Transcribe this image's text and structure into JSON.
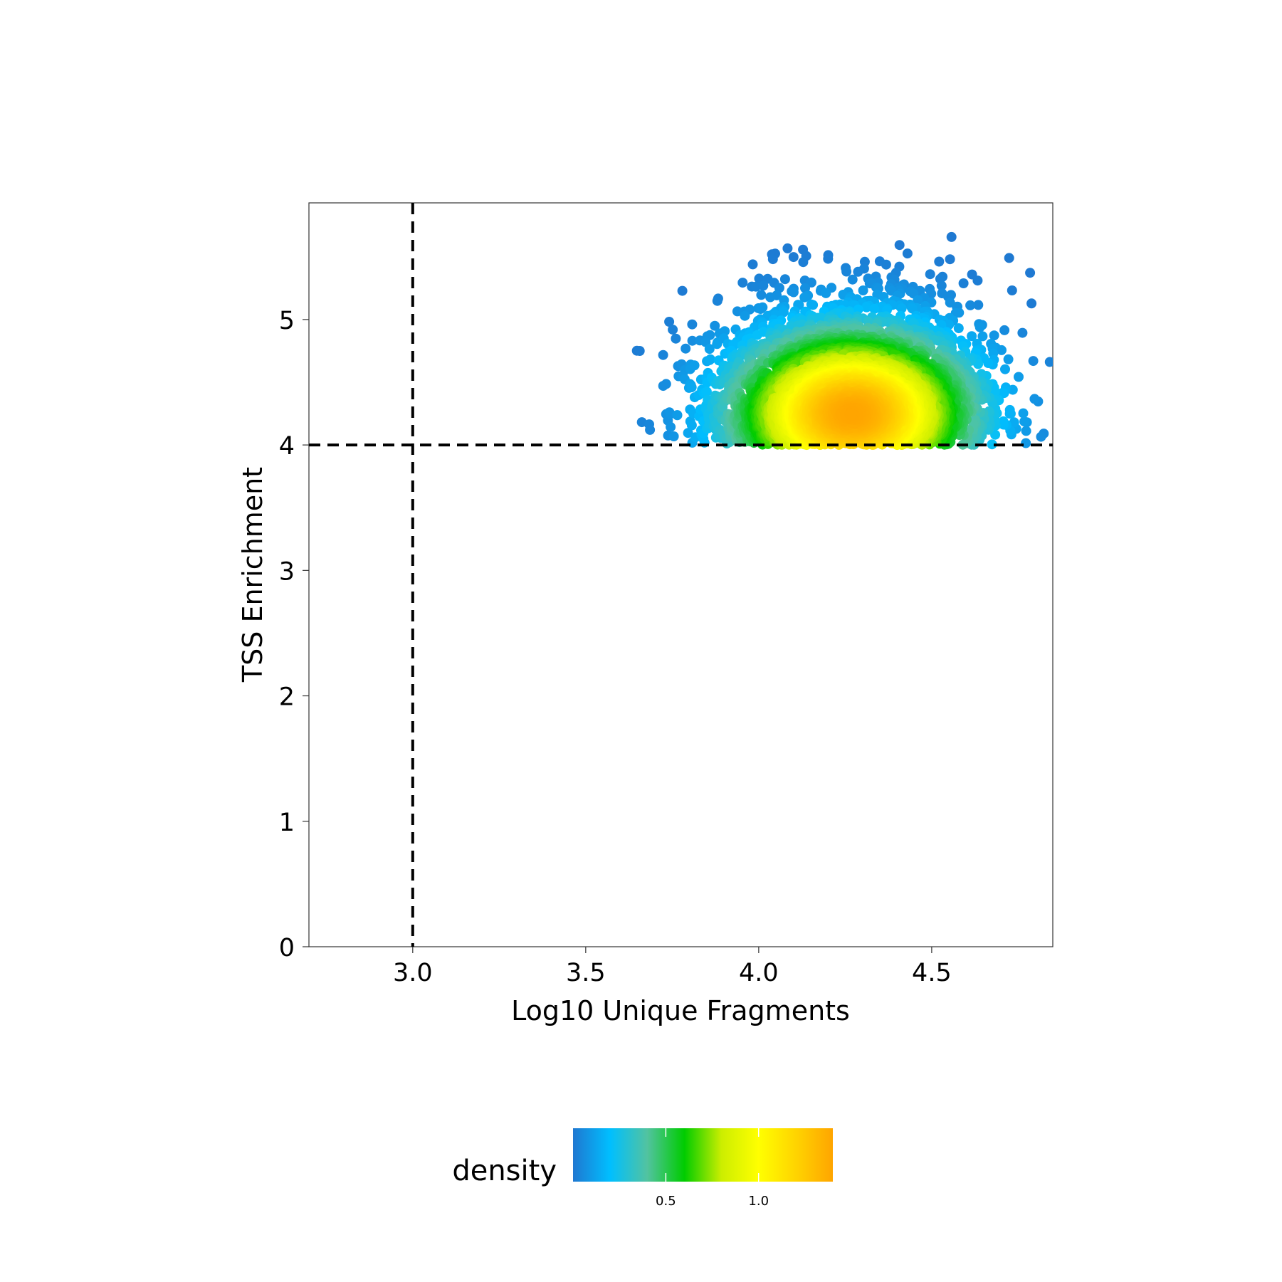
{
  "chart_data": {
    "type": "scatter",
    "xlabel": "Log10 Unique Fragments",
    "ylabel": "TSS Enrichment",
    "xlim": [
      2.7,
      4.85
    ],
    "ylim": [
      0,
      5.93
    ],
    "x_ticks": [
      "3.0",
      "3.5",
      "4.0",
      "4.5"
    ],
    "y_ticks": [
      "0",
      "1",
      "2",
      "3",
      "4",
      "5"
    ],
    "threshold_lines": {
      "x": 3.0,
      "y": 4.0,
      "style": "dashed"
    },
    "grid": false,
    "point_cloud": {
      "x_range": [
        3.64,
        4.85
      ],
      "y_range": [
        4.0,
        5.9
      ],
      "density_peak": {
        "x": 4.27,
        "y": 4.25
      }
    },
    "legend": {
      "title": "density",
      "placement": "bottom-center",
      "ticks": [
        "0.5",
        "1.0"
      ],
      "tick_values": [
        0.5,
        1.0
      ],
      "range": [
        0.0,
        1.4
      ]
    },
    "colormap": [
      "#1f78d1",
      "#00bfff",
      "#52c3a0",
      "#00cc00",
      "#ccee00",
      "#ffff00",
      "#ffd400",
      "#ffa500"
    ]
  }
}
